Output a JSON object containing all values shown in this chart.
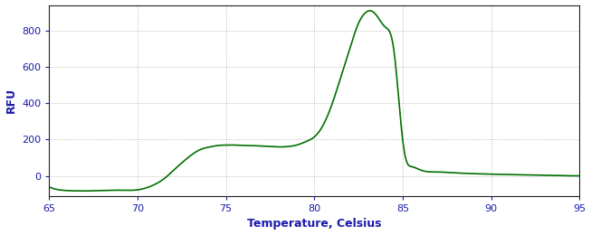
{
  "title": "",
  "xlabel": "Temperature, Celsius",
  "ylabel": "RFU",
  "xlim": [
    65,
    95
  ],
  "ylim": [
    -110,
    940
  ],
  "xticks": [
    65,
    70,
    75,
    80,
    85,
    90,
    95
  ],
  "yticks": [
    0,
    200,
    400,
    600,
    800
  ],
  "line_color": "#007000",
  "bg_color": "#ffffff",
  "spine_color": "#222222",
  "tick_label_color": "#1a1aaa",
  "axis_label_color": "#1a1aaa",
  "grid_color": "#555555",
  "curve_points": [
    [
      65.0,
      -60
    ],
    [
      65.5,
      -75
    ],
    [
      66.0,
      -80
    ],
    [
      67.0,
      -82
    ],
    [
      68.0,
      -80
    ],
    [
      69.0,
      -78
    ],
    [
      70.0,
      -76
    ],
    [
      70.5,
      -65
    ],
    [
      71.0,
      -45
    ],
    [
      71.5,
      -15
    ],
    [
      72.0,
      28
    ],
    [
      72.5,
      72
    ],
    [
      73.0,
      112
    ],
    [
      73.5,
      143
    ],
    [
      74.0,
      158
    ],
    [
      74.5,
      167
    ],
    [
      75.0,
      170
    ],
    [
      75.5,
      170
    ],
    [
      76.0,
      168
    ],
    [
      76.5,
      167
    ],
    [
      77.0,
      165
    ],
    [
      77.5,
      163
    ],
    [
      78.0,
      160
    ],
    [
      78.5,
      162
    ],
    [
      79.0,
      170
    ],
    [
      79.5,
      188
    ],
    [
      80.0,
      215
    ],
    [
      80.5,
      280
    ],
    [
      81.0,
      395
    ],
    [
      81.5,
      545
    ],
    [
      82.0,
      700
    ],
    [
      82.5,
      840
    ],
    [
      83.0,
      905
    ],
    [
      83.2,
      908
    ],
    [
      83.5,
      885
    ],
    [
      84.0,
      820
    ],
    [
      84.5,
      690
    ],
    [
      85.0,
      195
    ],
    [
      85.2,
      85
    ],
    [
      85.5,
      52
    ],
    [
      86.0,
      33
    ],
    [
      87.0,
      22
    ],
    [
      88.0,
      17
    ],
    [
      89.0,
      13
    ],
    [
      90.0,
      10
    ],
    [
      91.0,
      8
    ],
    [
      92.0,
      6
    ],
    [
      93.0,
      4
    ],
    [
      94.0,
      2
    ],
    [
      95.0,
      1
    ]
  ]
}
